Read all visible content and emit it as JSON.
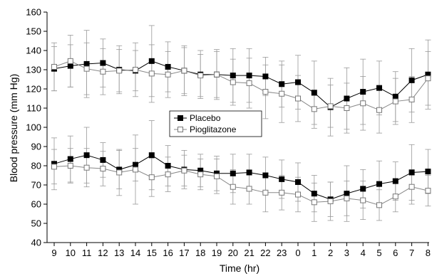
{
  "chart_data": {
    "type": "line",
    "title": "",
    "xlabel": "Time (hr)",
    "ylabel": "Blood pressure (mm Hg)",
    "ylim": [
      40,
      160
    ],
    "yticks": [
      40,
      50,
      60,
      70,
      80,
      90,
      100,
      110,
      120,
      130,
      140,
      150,
      160
    ],
    "grid": false,
    "legend_position": "center",
    "x": [
      "9",
      "10",
      "11",
      "12",
      "13",
      "14",
      "15",
      "16",
      "17",
      "18",
      "19",
      "20",
      "21",
      "22",
      "23",
      "0",
      "1",
      "2",
      "3",
      "4",
      "5",
      "6",
      "7",
      "8"
    ],
    "series": [
      {
        "name": "Placebo",
        "group": "systolic",
        "marker": "filled-square",
        "color": "#000000",
        "values": [
          130.5,
          132,
          133,
          133.5,
          130,
          129.5,
          134.5,
          131.5,
          129.5,
          127.5,
          127.5,
          127,
          127,
          126.5,
          122.5,
          123.5,
          118,
          110.5,
          115,
          118.5,
          120.5,
          116,
          124.5,
          127.5
        ],
        "errors": [
          11.5,
          11,
          17.5,
          12.5,
          12.5,
          10.5,
          18.5,
          13,
          13,
          12.5,
          13,
          14,
          14,
          10,
          12,
          14,
          16.5,
          15,
          16,
          17,
          14,
          13,
          16.5,
          18
        ]
      },
      {
        "name": "Pioglitazone",
        "group": "systolic",
        "marker": "open-square",
        "color": "#888888",
        "values": [
          131.5,
          134.5,
          130.5,
          129,
          129.5,
          130,
          128,
          127.5,
          129.5,
          127,
          127.5,
          123.5,
          123,
          118.5,
          117.5,
          115,
          109.5,
          111,
          110,
          112.5,
          109,
          113.5,
          114.5,
          125.5
        ],
        "errors": [
          12.5,
          13.5,
          13.5,
          12,
          11,
          14,
          15,
          12,
          12,
          11,
          12,
          12,
          13,
          14,
          15,
          12,
          10,
          11,
          13,
          14,
          12,
          12,
          12,
          14
        ]
      },
      {
        "name": "Placebo",
        "group": "diastolic",
        "marker": "filled-square",
        "color": "#000000",
        "values": [
          81,
          83.5,
          85.5,
          83,
          78,
          80.5,
          85.5,
          80,
          78,
          77.5,
          76,
          76,
          76.5,
          75,
          73,
          71.5,
          65.5,
          62.5,
          65.5,
          68,
          70.5,
          72,
          76.5,
          77
        ],
        "errors": [
          13.5,
          12,
          14.5,
          9,
          10,
          8.5,
          18,
          10.5,
          10,
          8.5,
          9,
          10,
          9.5,
          9.5,
          10,
          10,
          9.5,
          9,
          14.5,
          10,
          12,
          10,
          14.5,
          11.5
        ]
      },
      {
        "name": "Pioglitazone",
        "group": "diastolic",
        "marker": "open-square",
        "color": "#888888",
        "values": [
          79.5,
          80,
          79,
          78.5,
          76.5,
          78,
          74,
          75.5,
          77.5,
          75.5,
          74.5,
          69,
          68,
          66,
          66,
          65,
          61,
          61.5,
          63,
          62,
          59.5,
          64,
          69,
          67
        ],
        "errors": [
          9,
          9,
          10,
          9,
          12,
          18,
          10,
          9,
          8,
          8,
          9,
          9,
          8,
          10,
          9,
          9,
          10,
          10,
          9,
          10,
          8,
          8,
          9,
          8
        ]
      }
    ],
    "legend": [
      {
        "label": "Placebo",
        "marker": "filled-square"
      },
      {
        "label": "Pioglitazone",
        "marker": "open-square"
      }
    ]
  }
}
